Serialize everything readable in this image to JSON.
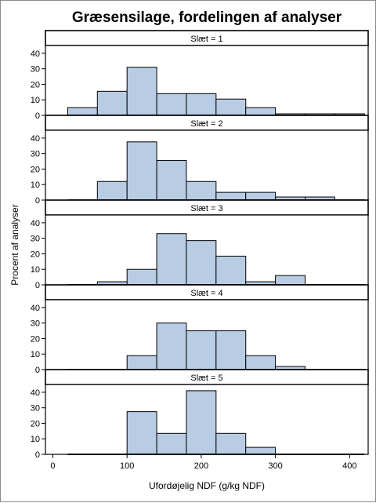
{
  "chart_data": {
    "type": "bar",
    "title": "Græsensilage, fordelingen af analyser",
    "xlabel": "Ufordøjelig NDF (g/kg NDF)",
    "ylabel": "Procent af analyser",
    "xlim": [
      -10,
      425
    ],
    "ylim": [
      0,
      45
    ],
    "xticks": [
      0,
      100,
      200,
      300,
      400
    ],
    "yticks": [
      0,
      10,
      20,
      30,
      40
    ],
    "bin_width": 40,
    "bin_edges": [
      20,
      60,
      100,
      140,
      180,
      220,
      260,
      300,
      340,
      380,
      420
    ],
    "bar_fill": "#b8cce4",
    "bar_stroke": "#000000",
    "panels": [
      {
        "label": "Slæt = 1",
        "bins": [
          {
            "x0": 20,
            "x1": 60,
            "value": 5
          },
          {
            "x0": 60,
            "x1": 100,
            "value": 15.5
          },
          {
            "x0": 100,
            "x1": 140,
            "value": 31
          },
          {
            "x0": 140,
            "x1": 180,
            "value": 14
          },
          {
            "x0": 180,
            "x1": 220,
            "value": 14
          },
          {
            "x0": 220,
            "x1": 260,
            "value": 10.5
          },
          {
            "x0": 260,
            "x1": 300,
            "value": 5
          },
          {
            "x0": 300,
            "x1": 340,
            "value": 1
          },
          {
            "x0": 340,
            "x1": 380,
            "value": 1
          },
          {
            "x0": 380,
            "x1": 420,
            "value": 1
          }
        ]
      },
      {
        "label": "Slæt = 2",
        "bins": [
          {
            "x0": 60,
            "x1": 100,
            "value": 12
          },
          {
            "x0": 100,
            "x1": 140,
            "value": 37.5
          },
          {
            "x0": 140,
            "x1": 180,
            "value": 25.5
          },
          {
            "x0": 180,
            "x1": 220,
            "value": 12
          },
          {
            "x0": 220,
            "x1": 260,
            "value": 5
          },
          {
            "x0": 260,
            "x1": 300,
            "value": 5
          },
          {
            "x0": 300,
            "x1": 340,
            "value": 2
          },
          {
            "x0": 340,
            "x1": 380,
            "value": 2
          }
        ]
      },
      {
        "label": "Slæt = 3",
        "bins": [
          {
            "x0": 60,
            "x1": 100,
            "value": 2
          },
          {
            "x0": 100,
            "x1": 140,
            "value": 10
          },
          {
            "x0": 140,
            "x1": 180,
            "value": 33
          },
          {
            "x0": 180,
            "x1": 220,
            "value": 28.5
          },
          {
            "x0": 220,
            "x1": 260,
            "value": 18.5
          },
          {
            "x0": 260,
            "x1": 300,
            "value": 2
          },
          {
            "x0": 300,
            "x1": 340,
            "value": 6
          }
        ]
      },
      {
        "label": "Slæt = 4",
        "bins": [
          {
            "x0": 100,
            "x1": 140,
            "value": 9
          },
          {
            "x0": 140,
            "x1": 180,
            "value": 30
          },
          {
            "x0": 180,
            "x1": 220,
            "value": 25
          },
          {
            "x0": 220,
            "x1": 260,
            "value": 25
          },
          {
            "x0": 260,
            "x1": 300,
            "value": 9
          },
          {
            "x0": 300,
            "x1": 340,
            "value": 2
          }
        ]
      },
      {
        "label": "Slæt = 5",
        "bins": [
          {
            "x0": 100,
            "x1": 140,
            "value": 27.5
          },
          {
            "x0": 140,
            "x1": 180,
            "value": 13.5
          },
          {
            "x0": 180,
            "x1": 220,
            "value": 41
          },
          {
            "x0": 220,
            "x1": 260,
            "value": 13.5
          },
          {
            "x0": 260,
            "x1": 300,
            "value": 4.5
          }
        ]
      }
    ]
  }
}
